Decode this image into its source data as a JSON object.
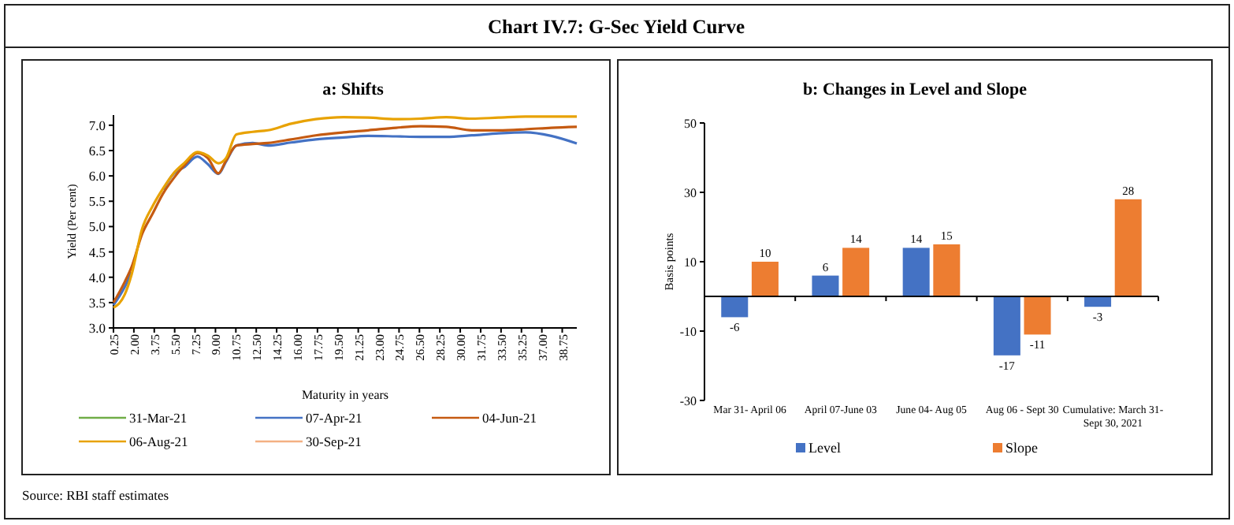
{
  "chart_data": [
    {
      "type": "line",
      "title": "Chart IV.7: G-Sec Yield Curve",
      "subtitle": "a: Shifts",
      "xlabel": "Maturity in years",
      "ylabel": "Yield (Per cent)",
      "x": [
        0.25,
        1.2,
        1.8,
        2.7,
        3.6,
        4.5,
        5.4,
        6.3,
        7.45,
        8.35,
        9.25,
        9.9,
        10.8,
        12.2,
        13.5,
        15.5,
        17.6,
        20,
        22.1,
        24.5,
        26.6,
        28.8,
        31,
        33.3,
        35.6,
        37.8,
        40
      ],
      "xlim": [
        0.25,
        40
      ],
      "xticks": [
        {
          "value": 0.25,
          "label": "0.25"
        },
        {
          "value": 2,
          "label": "2.00"
        },
        {
          "value": 3.75,
          "label": "3.75"
        },
        {
          "value": 5.5,
          "label": "5.50"
        },
        {
          "value": 7.25,
          "label": "7.25"
        },
        {
          "value": 9,
          "label": "9.00"
        },
        {
          "value": 10.75,
          "label": "10.75"
        },
        {
          "value": 12.5,
          "label": "12.50"
        },
        {
          "value": 14.25,
          "label": "14.25"
        },
        {
          "value": 16,
          "label": "16.00"
        },
        {
          "value": 17.75,
          "label": "17.75"
        },
        {
          "value": 19.5,
          "label": "19.50"
        },
        {
          "value": 21.25,
          "label": "21.25"
        },
        {
          "value": 23,
          "label": "23.00"
        },
        {
          "value": 24.75,
          "label": "24.75"
        },
        {
          "value": 26.5,
          "label": "26.50"
        },
        {
          "value": 28.25,
          "label": "28.25"
        },
        {
          "value": 30,
          "label": "30.00"
        },
        {
          "value": 31.75,
          "label": "31.75"
        },
        {
          "value": 33.5,
          "label": "33.50"
        },
        {
          "value": 35.25,
          "label": "35.25"
        },
        {
          "value": 37,
          "label": "37.00"
        },
        {
          "value": 38.75,
          "label": "38.75"
        }
      ],
      "ylim": [
        3,
        7.2
      ],
      "yticks": [
        {
          "value": 3,
          "label": "3.0"
        },
        {
          "value": 3.5,
          "label": "3.5"
        },
        {
          "value": 4,
          "label": "4.0"
        },
        {
          "value": 4.5,
          "label": "4.5"
        },
        {
          "value": 5,
          "label": "5.0"
        },
        {
          "value": 5.5,
          "label": "5.5"
        },
        {
          "value": 6,
          "label": "6.0"
        },
        {
          "value": 6.5,
          "label": "6.5"
        },
        {
          "value": 7,
          "label": "7.0"
        }
      ],
      "legend": "bottom",
      "grid": false,
      "marker": "none",
      "line_style": "solid",
      "annotations": [
        "Source: RBI staff estimates"
      ],
      "series": [
        {
          "name": "31-Mar-21",
          "color": "#70ad47",
          "values": [
            null,
            null,
            null,
            null,
            null,
            null,
            null,
            null,
            null,
            null,
            null,
            null,
            null,
            null,
            null,
            null,
            null,
            null,
            null,
            null,
            null,
            null,
            null,
            null,
            null,
            null,
            null
          ]
        },
        {
          "name": "07-Apr-21",
          "color": "#4472c4",
          "values": [
            3.45,
            3.8,
            4.1,
            null,
            null,
            5.73,
            6.04,
            6.17,
            6.38,
            6.23,
            6.04,
            6.28,
            6.6,
            6.65,
            6.6,
            6.66,
            6.72,
            6.76,
            6.79,
            6.78,
            6.77,
            6.77,
            6.8,
            6.84,
            6.86,
            6.79,
            6.64
          ]
        },
        {
          "name": "04-Jun-21",
          "color": "#c55a11",
          "values": [
            3.5,
            3.9,
            4.2,
            4.85,
            5.25,
            5.65,
            5.95,
            6.2,
            6.45,
            6.35,
            6.05,
            6.3,
            6.6,
            6.63,
            6.65,
            6.72,
            6.8,
            6.86,
            6.9,
            6.95,
            6.98,
            6.97,
            6.9,
            6.9,
            6.92,
            6.95,
            6.97
          ]
        },
        {
          "name": "06-Aug-21",
          "color": "#e8a202",
          "values": [
            3.4,
            3.65,
            4.05,
            4.95,
            5.4,
            5.75,
            6.05,
            6.25,
            6.47,
            6.4,
            6.25,
            6.35,
            6.82,
            6.87,
            6.9,
            7.03,
            7.12,
            7.16,
            7.15,
            7.12,
            7.13,
            7.16,
            7.13,
            7.15,
            7.17,
            7.17,
            7.17
          ]
        },
        {
          "name": "30-Sep-21",
          "color": "#f4b183",
          "values": [
            null,
            null,
            null,
            null,
            null,
            null,
            null,
            null,
            null,
            null,
            null,
            null,
            null,
            null,
            null,
            null,
            null,
            null,
            null,
            null,
            null,
            null,
            null,
            null,
            null,
            null,
            null
          ]
        }
      ]
    },
    {
      "type": "bar",
      "title": "b: Changes in Level and Slope",
      "ylabel": "Basis points",
      "categories": [
        "Mar 31- April 06",
        "April 07-June 03",
        "June 04- Aug 05",
        "Aug 06 - Sept 30",
        "Cumulative: March 31- Sept 30, 2021"
      ],
      "ylim": [
        -30,
        50
      ],
      "yticks": [
        -30,
        -10,
        10,
        30,
        50
      ],
      "legend": "bottom",
      "grid": false,
      "data_labels": true,
      "series": [
        {
          "name": "Level",
          "color": "#4472c4",
          "values": [
            -6,
            6,
            14,
            -17,
            -3
          ]
        },
        {
          "name": "Slope",
          "color": "#ed7d31",
          "values": [
            10,
            14,
            15,
            -11,
            28
          ]
        }
      ]
    }
  ]
}
